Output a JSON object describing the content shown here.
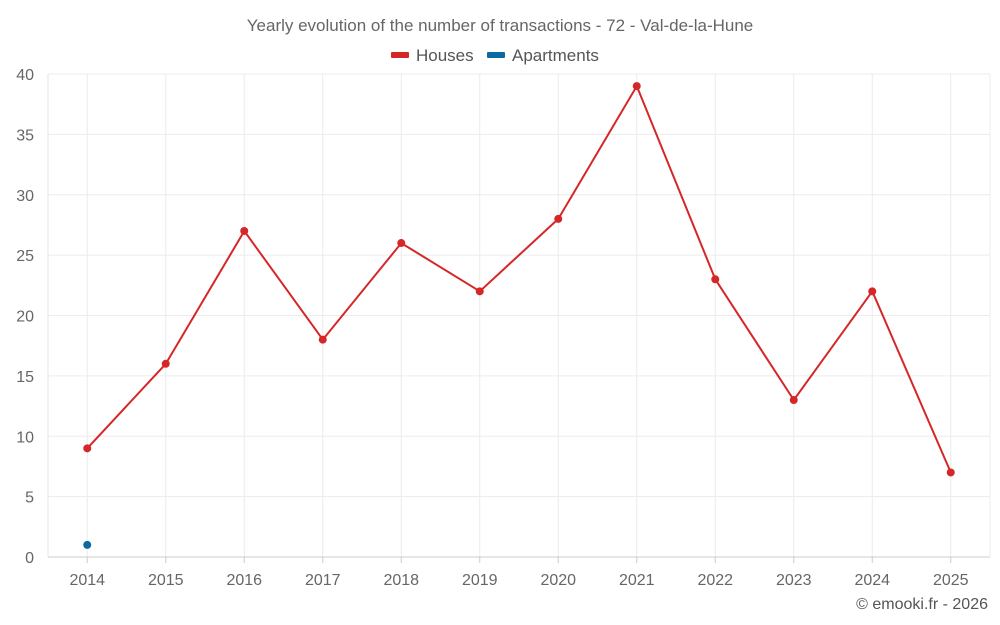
{
  "chart_data": {
    "type": "line",
    "title": "Yearly evolution of the number of transactions - 72 - Val-de-la-Hune",
    "xlabel": "",
    "ylabel": "",
    "categories": [
      "2014",
      "2015",
      "2016",
      "2017",
      "2018",
      "2019",
      "2020",
      "2021",
      "2022",
      "2023",
      "2024",
      "2025"
    ],
    "y_ticks": [
      "0",
      "5",
      "10",
      "15",
      "20",
      "25",
      "30",
      "35",
      "40"
    ],
    "ylim": [
      0,
      40
    ],
    "grid": true,
    "legend_position": "top-center",
    "series": [
      {
        "name": "Houses",
        "color": "#d62728",
        "values": [
          9,
          16,
          27,
          18,
          26,
          22,
          28,
          39,
          23,
          13,
          22,
          7
        ]
      },
      {
        "name": "Apartments",
        "color": "#0b6aa2",
        "values": [
          1,
          null,
          null,
          null,
          null,
          null,
          null,
          null,
          null,
          null,
          null,
          null
        ]
      }
    ]
  },
  "credit": "© emooki.fr - 2026"
}
